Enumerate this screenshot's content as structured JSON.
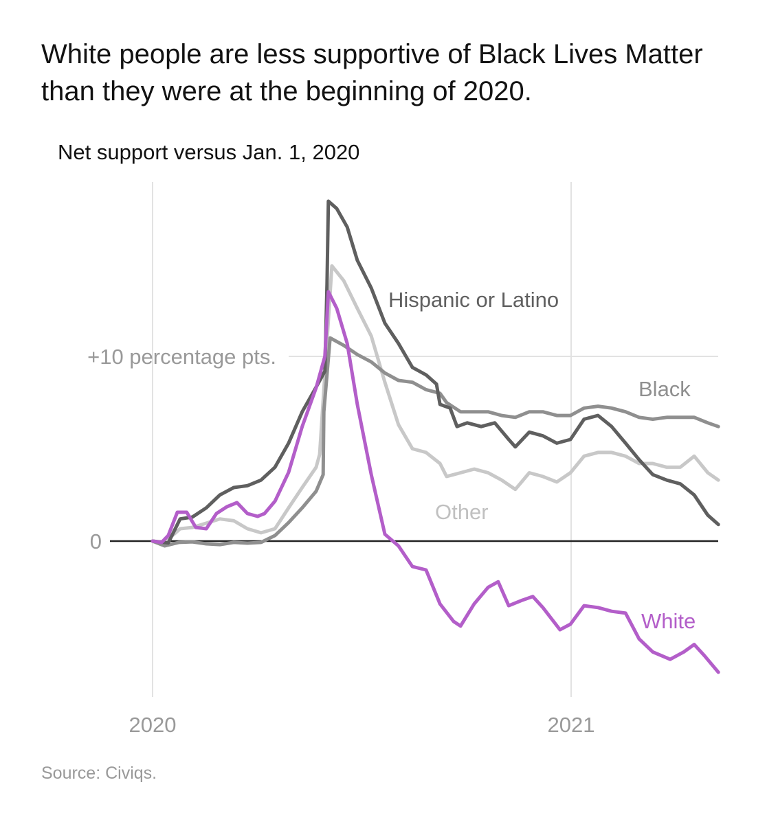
{
  "title": "White people are less supportive of Black Lives Matter than they were at the beginning of 2020.",
  "source": "Source: Civiqs.",
  "chart_data": {
    "type": "line",
    "title": "White people are less supportive of Black Lives Matter than they were at the beginning of 2020.",
    "subtitle": "Net support versus Jan. 1, 2020",
    "xlabel": "",
    "ylabel": "Net support versus Jan. 1, 2020 (percentage pts.)",
    "x_unit": "months since Jan. 1, 2020",
    "xlim": [
      0,
      16.2
    ],
    "ylim": [
      -7.5,
      18.5
    ],
    "grid": true,
    "x_ticks": [
      {
        "value": 0,
        "label": "2020"
      },
      {
        "value": 12,
        "label": "2021"
      }
    ],
    "y_ticks": [
      {
        "value": 0,
        "label": "0"
      },
      {
        "value": 10,
        "label": "+10 percentage pts."
      }
    ],
    "series": [
      {
        "name": "Hispanic or Latino",
        "color": "#5f5f5f",
        "x": [
          0,
          0.45,
          0.79,
          1.14,
          1.54,
          1.93,
          2.33,
          2.72,
          3.11,
          3.51,
          3.9,
          4.29,
          4.65,
          4.94,
          5.0,
          5.04,
          5.28,
          5.58,
          5.87,
          6.27,
          6.66,
          7.05,
          7.45,
          7.84,
          8.14,
          8.24,
          8.53,
          8.73,
          9.02,
          9.42,
          9.81,
          10.21,
          10.4,
          10.8,
          11.19,
          11.59,
          11.98,
          12.37,
          12.77,
          13.16,
          13.56,
          13.95,
          14.34,
          14.74,
          15.13,
          15.53,
          15.92,
          16.22
        ],
        "y": [
          0,
          -0.1,
          1.2,
          1.3,
          1.8,
          2.5,
          2.9,
          3.0,
          3.3,
          4.0,
          5.3,
          7.0,
          8.2,
          9.2,
          13.9,
          18.4,
          18.0,
          17.0,
          15.2,
          13.7,
          11.8,
          10.7,
          9.4,
          9.0,
          8.5,
          7.4,
          7.2,
          6.2,
          6.4,
          6.2,
          6.4,
          5.5,
          5.1,
          5.9,
          5.7,
          5.3,
          5.5,
          6.6,
          6.8,
          6.2,
          5.3,
          4.4,
          3.6,
          3.3,
          3.1,
          2.5,
          1.4,
          0.9
        ]
      },
      {
        "name": "Black",
        "color": "#8f8f8f",
        "x": [
          0,
          0.35,
          0.75,
          1.14,
          1.54,
          1.93,
          2.33,
          2.72,
          3.11,
          3.51,
          3.9,
          4.29,
          4.69,
          4.89,
          4.91,
          5.09,
          5.48,
          5.87,
          6.27,
          6.66,
          7.05,
          7.45,
          7.84,
          8.24,
          8.43,
          8.83,
          9.22,
          9.62,
          10.01,
          10.4,
          10.8,
          11.19,
          11.59,
          11.98,
          12.37,
          12.77,
          13.16,
          13.56,
          13.95,
          14.34,
          14.74,
          15.13,
          15.53,
          15.92,
          16.22
        ],
        "y": [
          0,
          -0.26,
          -0.07,
          -0.04,
          -0.15,
          -0.19,
          -0.07,
          -0.11,
          -0.07,
          0.3,
          1.0,
          1.8,
          2.7,
          3.6,
          7.0,
          11.0,
          10.6,
          10.1,
          9.7,
          9.1,
          8.7,
          8.6,
          8.2,
          8.0,
          7.5,
          7.0,
          7.0,
          7.0,
          6.8,
          6.7,
          7.0,
          7.0,
          6.8,
          6.8,
          7.2,
          7.3,
          7.2,
          7.0,
          6.7,
          6.6,
          6.7,
          6.7,
          6.7,
          6.4,
          6.2
        ]
      },
      {
        "name": "Other",
        "color": "#c8c8c8",
        "x": [
          0,
          0.35,
          0.79,
          1.14,
          1.54,
          1.93,
          2.33,
          2.72,
          3.11,
          3.51,
          3.9,
          4.29,
          4.69,
          4.79,
          5.14,
          5.48,
          5.87,
          6.27,
          6.66,
          7.05,
          7.45,
          7.84,
          8.24,
          8.43,
          8.83,
          9.22,
          9.62,
          10.01,
          10.4,
          10.8,
          11.19,
          11.59,
          11.98,
          12.37,
          12.77,
          13.16,
          13.56,
          13.95,
          14.34,
          14.74,
          15.13,
          15.53,
          15.92,
          16.22
        ],
        "y": [
          0,
          -0.07,
          0.67,
          0.74,
          0.97,
          1.2,
          1.1,
          0.67,
          0.45,
          0.67,
          1.8,
          2.9,
          4.0,
          4.7,
          14.9,
          14.1,
          12.6,
          11.1,
          8.6,
          6.3,
          5.0,
          4.8,
          4.2,
          3.5,
          3.7,
          3.9,
          3.7,
          3.3,
          2.8,
          3.7,
          3.5,
          3.2,
          3.7,
          4.6,
          4.8,
          4.8,
          4.6,
          4.2,
          4.2,
          4.0,
          4.0,
          4.6,
          3.7,
          3.3
        ]
      },
      {
        "name": "White",
        "color": "#b35ec9",
        "x": [
          0,
          0.26,
          0.45,
          0.71,
          0.98,
          1.24,
          1.54,
          1.83,
          2.13,
          2.42,
          2.72,
          3.01,
          3.21,
          3.51,
          3.9,
          4.29,
          4.69,
          4.94,
          5.04,
          5.28,
          5.58,
          5.87,
          6.27,
          6.66,
          7.05,
          7.45,
          7.84,
          8.24,
          8.63,
          8.83,
          9.22,
          9.62,
          9.91,
          10.21,
          10.6,
          10.9,
          11.19,
          11.68,
          11.98,
          12.37,
          12.77,
          13.16,
          13.56,
          13.95,
          14.34,
          14.84,
          15.23,
          15.53,
          15.82,
          16.22
        ],
        "y": [
          0,
          -0.07,
          0.3,
          1.56,
          1.56,
          0.74,
          0.67,
          1.49,
          1.86,
          2.08,
          1.49,
          1.34,
          1.49,
          2.16,
          3.72,
          6.2,
          8.3,
          10.0,
          13.5,
          12.6,
          10.7,
          7.4,
          3.6,
          0.37,
          -0.26,
          -1.38,
          -1.56,
          -3.4,
          -4.35,
          -4.6,
          -3.4,
          -2.5,
          -2.2,
          -3.5,
          -3.2,
          -3.0,
          -3.6,
          -4.8,
          -4.5,
          -3.5,
          -3.6,
          -3.8,
          -3.9,
          -5.3,
          -6.0,
          -6.4,
          -6.0,
          -5.6,
          -6.2,
          -7.1
        ]
      }
    ],
    "annotations": [
      "Hispanic or Latino",
      "Black",
      "Other",
      "White"
    ]
  }
}
